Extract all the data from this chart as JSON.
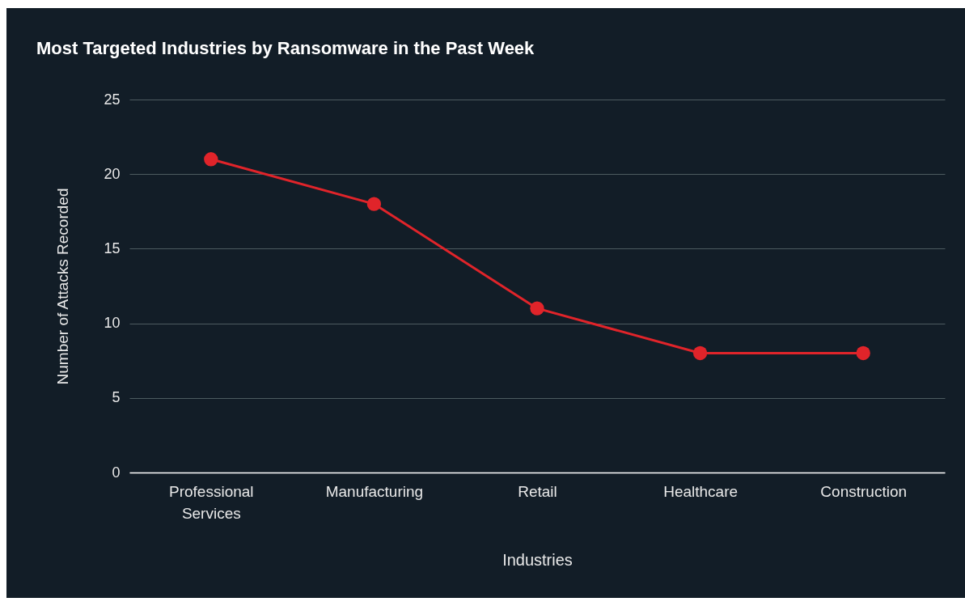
{
  "chart_data": {
    "type": "line",
    "title": "Most Targeted Industries by Ransomware in the Past Week",
    "xlabel": "Industries",
    "ylabel": "Number of Attacks Recorded",
    "categories": [
      "Professional Services",
      "Manufacturing",
      "Retail",
      "Healthcare",
      "Construction"
    ],
    "series": [
      {
        "color": "#e0242a",
        "values": [
          21,
          18,
          11,
          8,
          8
        ]
      }
    ],
    "ylim": [
      0,
      25
    ],
    "yticks": [
      0,
      5,
      10,
      15,
      20,
      25
    ],
    "grid": "y",
    "marker": "circle",
    "line_style": "solid"
  }
}
